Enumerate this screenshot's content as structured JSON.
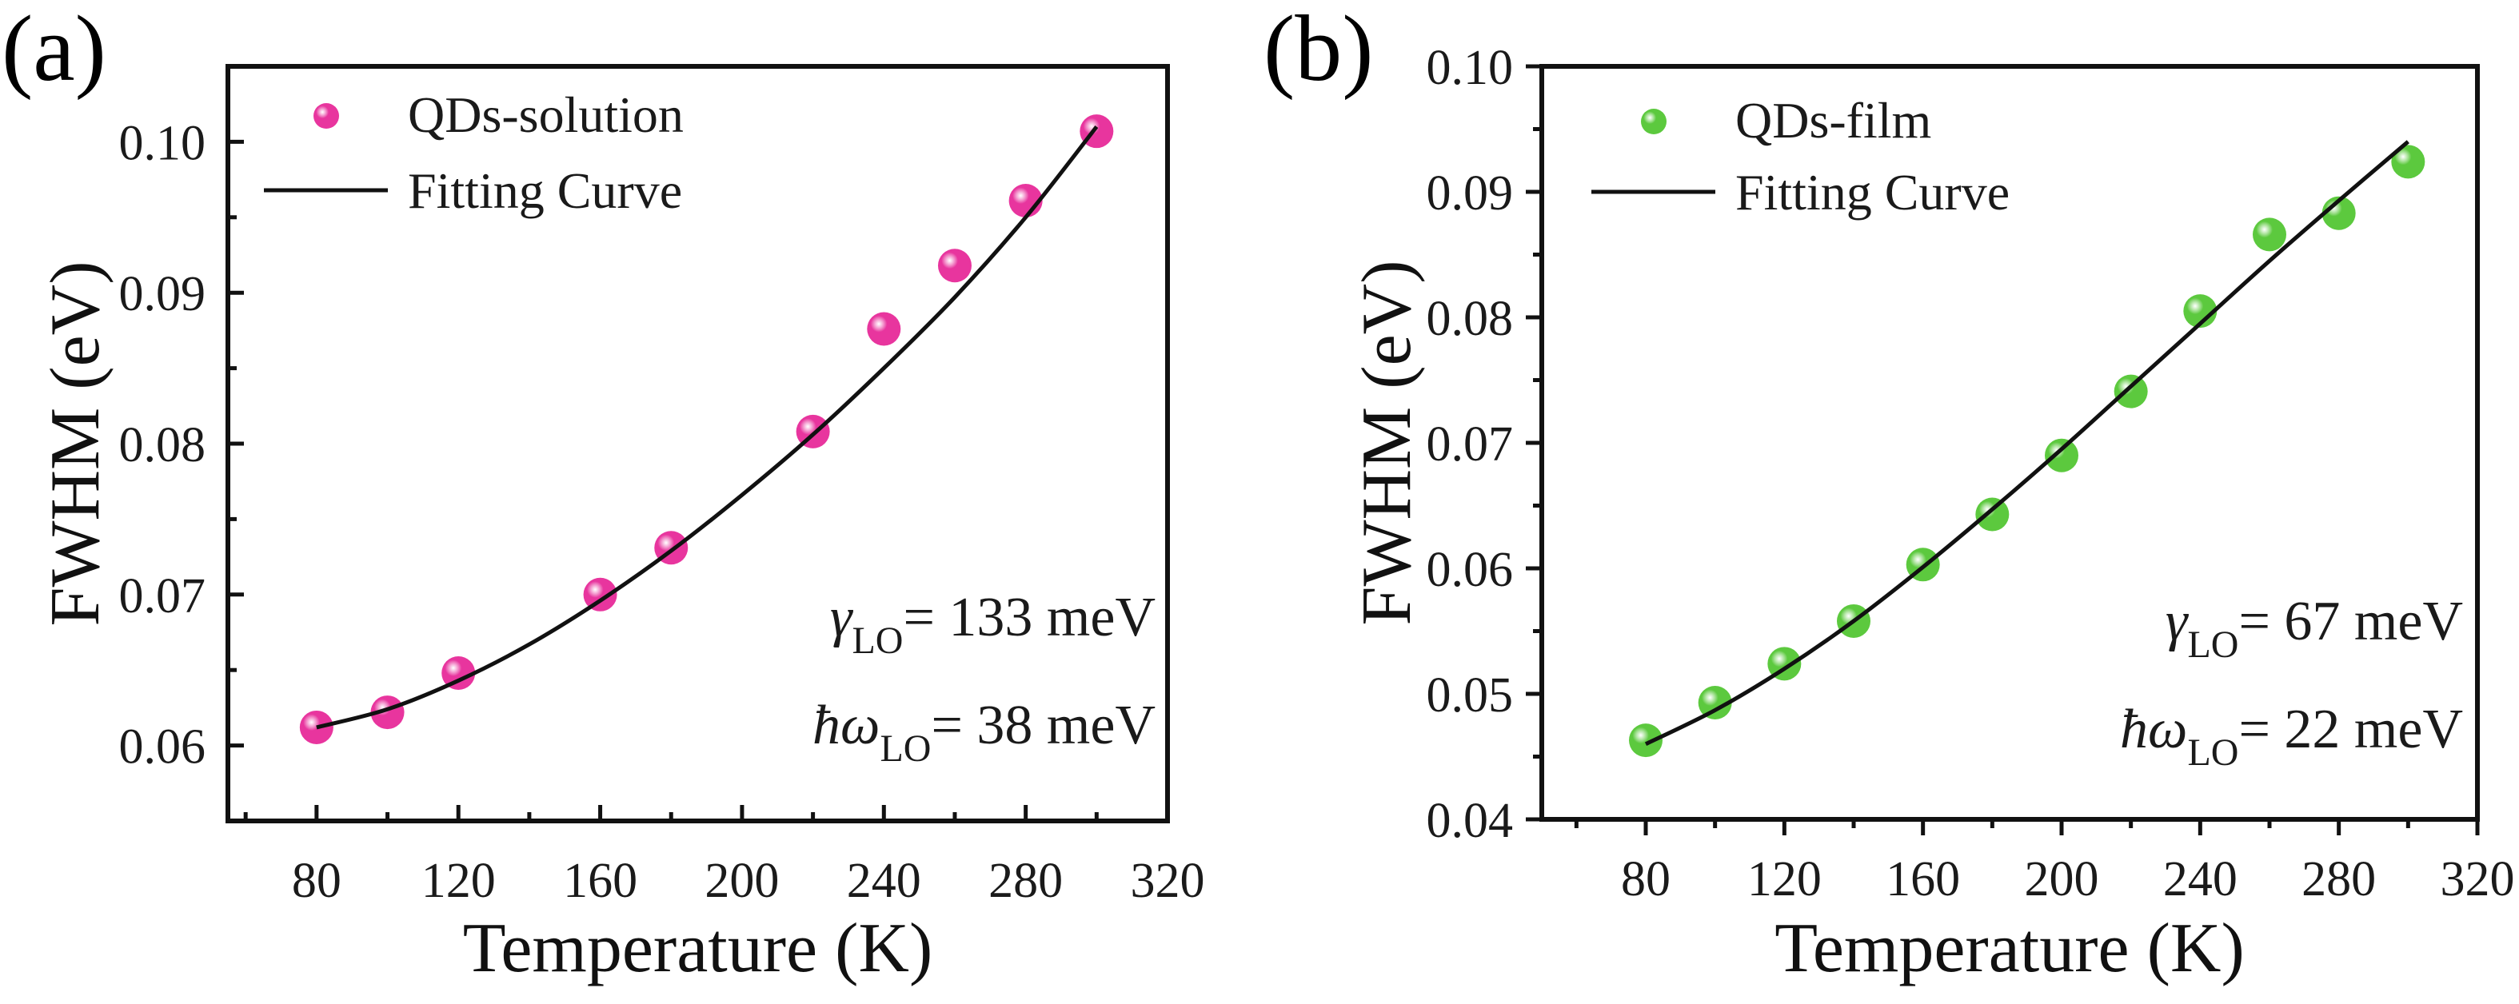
{
  "chart_data": [
    {
      "type": "scatter",
      "panel_label": "(a)",
      "title": "",
      "xlabel": "Temperature (K)",
      "ylabel": "FWHM (eV)",
      "xlim": [
        55,
        320
      ],
      "ylim": [
        0.055,
        0.105
      ],
      "x_major_ticks": [
        80,
        120,
        160,
        200,
        240,
        280,
        320
      ],
      "x_tick_labels": [
        "80",
        "120",
        "160",
        "200",
        "240",
        "280",
        "320"
      ],
      "x_minor_ticks": [
        60,
        100,
        140,
        180,
        220,
        260,
        300
      ],
      "y_major_ticks": [
        0.06,
        0.07,
        0.08,
        0.09,
        0.1
      ],
      "y_tick_labels": [
        "0.06",
        "0.07",
        "0.08",
        "0.09",
        "0.10"
      ],
      "y_minor_ticks": [
        0.065,
        0.075,
        0.085,
        0.095
      ],
      "tick_direction": "in",
      "grid": false,
      "legend_position": "top-left",
      "series": [
        {
          "name": "QDs-solution",
          "kind": "markers",
          "color": "#e8359e",
          "x": [
            80,
            100,
            120,
            160,
            180,
            220,
            240,
            260,
            280,
            300
          ],
          "y": [
            0.0612,
            0.0622,
            0.0648,
            0.07,
            0.0731,
            0.0808,
            0.0876,
            0.0918,
            0.0961,
            0.1007
          ]
        },
        {
          "name": "Fitting Curve",
          "kind": "line",
          "color": "#111111",
          "x": [
            80,
            100,
            120,
            140,
            160,
            180,
            200,
            220,
            240,
            260,
            280,
            300
          ],
          "y": [
            0.0612,
            0.0624,
            0.0643,
            0.0667,
            0.0696,
            0.0729,
            0.0766,
            0.0806,
            0.085,
            0.0897,
            0.095,
            0.101
          ]
        }
      ],
      "annotations": [
        {
          "symbol": "γ",
          "sub": "LO",
          "text": "= 133 meV"
        },
        {
          "symbol": "ħω",
          "sub": "LO",
          "text": "= 38 meV"
        }
      ]
    },
    {
      "type": "scatter",
      "panel_label": "(b)",
      "title": "",
      "xlabel": "Temperature (K)",
      "ylabel": "FWHM (eV)",
      "xlim": [
        50,
        320
      ],
      "ylim": [
        0.04,
        0.1
      ],
      "x_major_ticks": [
        80,
        120,
        160,
        200,
        240,
        280,
        320
      ],
      "x_tick_labels": [
        "80",
        "120",
        "160",
        "200",
        "240",
        "280",
        "320"
      ],
      "x_minor_ticks": [
        60,
        100,
        140,
        180,
        220,
        260,
        300
      ],
      "y_major_ticks": [
        0.04,
        0.05,
        0.06,
        0.07,
        0.08,
        0.09,
        0.1
      ],
      "y_tick_labels": [
        "0.04",
        "0.05",
        "0.06",
        "0.07",
        "0.08",
        "0.09",
        "0.10"
      ],
      "y_minor_ticks": [
        0.045,
        0.055,
        0.065,
        0.075,
        0.085,
        0.095
      ],
      "tick_direction": "out",
      "grid": false,
      "legend_position": "top-left",
      "series": [
        {
          "name": "QDs-film",
          "kind": "markers",
          "color": "#5cc93e",
          "x": [
            80,
            100,
            120,
            140,
            160,
            180,
            200,
            220,
            240,
            260,
            280,
            300
          ],
          "y": [
            0.0463,
            0.0493,
            0.0524,
            0.0558,
            0.0603,
            0.0643,
            0.069,
            0.0741,
            0.0805,
            0.0866,
            0.0883,
            0.0924
          ]
        },
        {
          "name": "Fitting Curve",
          "kind": "line",
          "color": "#111111",
          "x": [
            80,
            100,
            120,
            140,
            160,
            180,
            200,
            220,
            240,
            260,
            280,
            300
          ],
          "y": [
            0.046,
            0.0487,
            0.052,
            0.0558,
            0.0601,
            0.0647,
            0.0695,
            0.0745,
            0.0795,
            0.0845,
            0.0893,
            0.094
          ]
        }
      ],
      "annotations": [
        {
          "symbol": "γ",
          "sub": "LO",
          "text": "= 67 meV"
        },
        {
          "symbol": "ħω",
          "sub": "LO",
          "text": "= 22 meV"
        }
      ]
    }
  ]
}
